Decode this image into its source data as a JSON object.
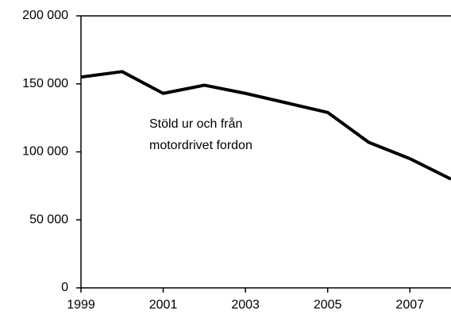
{
  "chart_data": {
    "type": "line",
    "x": [
      1999,
      2000,
      2001,
      2002,
      2003,
      2004,
      2005,
      2006,
      2007,
      2008
    ],
    "series": [
      {
        "color": "#000000",
        "values": [
          155000,
          159000,
          143000,
          149000,
          143000,
          136000,
          129000,
          107000,
          95000,
          80000
        ]
      }
    ],
    "annotations": [
      "Stöld ur och från",
      "motordrivet fordon"
    ],
    "xlim": [
      1999,
      2008
    ],
    "xticks": [
      1999,
      2001,
      2003,
      2005,
      2007
    ],
    "ylim": [
      0,
      200000
    ],
    "yticks": [
      {
        "value": 0,
        "label": "0"
      },
      {
        "value": 50000,
        "label": "50 000"
      },
      {
        "value": 100000,
        "label": "100 000"
      },
      {
        "value": 150000,
        "label": "150 000"
      },
      {
        "value": 200000,
        "label": "200 000"
      }
    ]
  }
}
